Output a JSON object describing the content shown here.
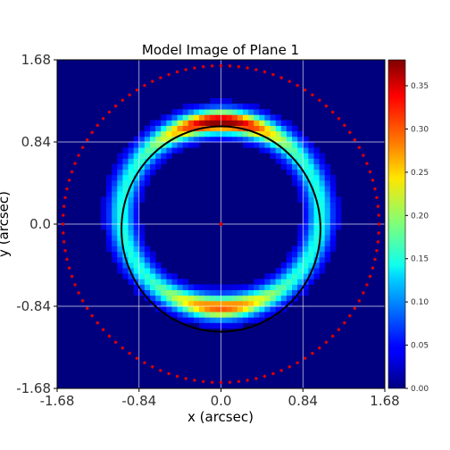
{
  "chart_data": {
    "type": "heatmap",
    "title": "Model Image of Plane 1",
    "xlabel": "x (arcsec)",
    "ylabel": "y (arcsec)",
    "xlim": [
      -1.68,
      1.68
    ],
    "ylim": [
      -1.68,
      1.68
    ],
    "xticks": [
      "-1.68",
      "-0.84",
      "0.0",
      "0.84",
      "1.68"
    ],
    "yticks": [
      "-1.68",
      "-0.84",
      "0.0",
      "0.84",
      "1.68"
    ],
    "grid": true,
    "colormap": "jet",
    "colorbar": {
      "range": [
        0.0,
        0.38
      ],
      "ticks": [
        "0.00",
        "0.05",
        "0.10",
        "0.15",
        "0.20",
        "0.25",
        "0.30",
        "0.35"
      ]
    },
    "ring": {
      "center": [
        0.0,
        0.1
      ],
      "radius_x": 1.02,
      "radius_y": 0.95,
      "width": 0.16,
      "peak_top_value": 0.38,
      "peak_bottom_value": 0.3,
      "min_value": 0.04
    },
    "critical_curve": {
      "center": [
        0.0,
        -0.05
      ],
      "radius_x": 1.02,
      "radius_y": 1.05,
      "color": "#000000"
    },
    "caustic_border": {
      "radius": 1.62,
      "point_count": 112,
      "color": "#dd0000"
    },
    "center_point": {
      "x": 0.0,
      "y": 0.0
    }
  }
}
